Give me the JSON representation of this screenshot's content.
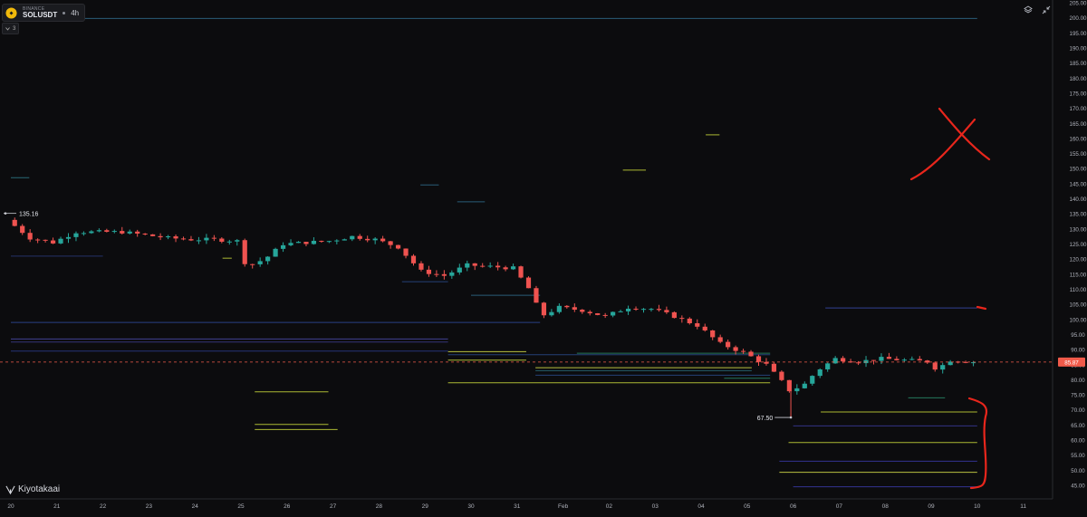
{
  "header": {
    "exchange": "BINANCE",
    "symbol": "SOLUSDT",
    "timeframe": "4h",
    "indicator_count": "3"
  },
  "watermark": "Kiyotakaai",
  "icons": [
    "layers-icon",
    "collapse-arrows-icon",
    "chevron-down-icon",
    "binance-logo-icon",
    "kiyotaka-logo-icon"
  ],
  "colors": {
    "up": "#26a69a",
    "down": "#ef5350",
    "price_line": "#f05a4a",
    "annotation": "#e8261c"
  },
  "chart_data": {
    "type": "candlestick",
    "x_ticks": [
      "20",
      "21",
      "22",
      "23",
      "24",
      "25",
      "26",
      "27",
      "28",
      "29",
      "30",
      "31",
      "Feb",
      "02",
      "03",
      "04",
      "05",
      "06",
      "07",
      "08",
      "09",
      "10",
      "11"
    ],
    "y_ticks": [
      "205.00",
      "200.00",
      "195.00",
      "190.00",
      "185.00",
      "180.00",
      "175.00",
      "170.00",
      "165.00",
      "160.00",
      "155.00",
      "150.00",
      "145.00",
      "140.00",
      "135.00",
      "130.00",
      "125.00",
      "120.00",
      "115.00",
      "110.00",
      "105.00",
      "100.00",
      "95.00",
      "90.00",
      "85.00",
      "80.00",
      "75.00",
      "70.00",
      "65.00",
      "60.00",
      "55.00",
      "50.00",
      "45.00"
    ],
    "ylim": [
      43.5,
      206
    ],
    "current_price": "85.87",
    "annotations": [
      "135.16",
      "67.50"
    ],
    "path": [
      [
        0,
        133
      ],
      [
        0.5,
        127
      ],
      [
        1,
        125.5
      ],
      [
        1.5,
        129
      ],
      [
        2,
        129
      ],
      [
        2.5,
        129
      ],
      [
        3,
        128
      ],
      [
        3.5,
        127
      ],
      [
        4,
        126.5
      ],
      [
        4.5,
        126.5
      ],
      [
        5,
        126
      ],
      [
        5.2,
        117.5
      ],
      [
        5.6,
        120
      ],
      [
        6,
        125
      ],
      [
        6.5,
        125.5
      ],
      [
        7,
        126
      ],
      [
        7.5,
        127.5
      ],
      [
        8,
        126.5
      ],
      [
        8.5,
        124
      ],
      [
        9,
        116
      ],
      [
        9.5,
        114.5
      ],
      [
        10,
        118
      ],
      [
        10.5,
        117.5
      ],
      [
        11,
        117
      ],
      [
        11.4,
        109
      ],
      [
        11.6,
        101
      ],
      [
        12,
        104
      ],
      [
        12.5,
        103
      ],
      [
        13,
        101
      ],
      [
        13.5,
        104
      ],
      [
        14,
        103.5
      ],
      [
        14.5,
        101
      ],
      [
        15,
        98
      ],
      [
        15.5,
        92
      ],
      [
        16,
        89
      ],
      [
        16.5,
        85
      ],
      [
        16.8,
        80
      ],
      [
        17,
        76.5
      ],
      [
        17.3,
        78
      ],
      [
        17.6,
        83
      ],
      [
        18,
        87
      ],
      [
        18.5,
        86
      ],
      [
        19,
        87
      ],
      [
        19.5,
        86.5
      ],
      [
        20,
        86
      ],
      [
        20.2,
        83.5
      ],
      [
        20.5,
        86.5
      ],
      [
        21,
        85.9
      ]
    ],
    "liquidity_levels": [
      {
        "x0": 0,
        "x1": 21,
        "price": 199.8,
        "color": "#2f6a8a"
      },
      {
        "x0": 0,
        "x1": 0.4,
        "price": 147,
        "color": "#2f7a8a"
      },
      {
        "x0": 8.9,
        "x1": 9.3,
        "price": 144.6,
        "color": "#2f6a8a"
      },
      {
        "x0": 9.7,
        "x1": 10.3,
        "price": 139,
        "color": "#2f6a8a"
      },
      {
        "x0": 15.1,
        "x1": 15.4,
        "price": 161.2,
        "color": "#c8d83a"
      },
      {
        "x0": 13.3,
        "x1": 13.8,
        "price": 149.5,
        "color": "#c8d83a"
      },
      {
        "x0": 0,
        "x1": 2,
        "price": 121,
        "color": "#2a3a7a"
      },
      {
        "x0": 4.6,
        "x1": 4.8,
        "price": 120.3,
        "color": "#c8d83a"
      },
      {
        "x0": 8.5,
        "x1": 9.5,
        "price": 112.5,
        "color": "#2a4a8a"
      },
      {
        "x0": 10,
        "x1": 11.5,
        "price": 108,
        "color": "#2f6a8a"
      },
      {
        "x0": 0,
        "x1": 11.5,
        "price": 99,
        "color": "#2f4a9a"
      },
      {
        "x0": 0,
        "x1": 9.5,
        "price": 93.5,
        "color": "#4a4aaa"
      },
      {
        "x0": 0,
        "x1": 9.5,
        "price": 92.5,
        "color": "#3a3a8a"
      },
      {
        "x0": 0,
        "x1": 9.5,
        "price": 89.5,
        "color": "#2a3a8a"
      },
      {
        "x0": 9.5,
        "x1": 11.2,
        "price": 89.3,
        "color": "#d6e04a"
      },
      {
        "x0": 12.3,
        "x1": 16.5,
        "price": 88.8,
        "color": "#2a8a6a"
      },
      {
        "x0": 9.5,
        "x1": 16.5,
        "price": 88.3,
        "color": "#2a4a8a"
      },
      {
        "x0": 9.5,
        "x1": 11.2,
        "price": 86.5,
        "color": "#c8d83a"
      },
      {
        "x0": 11.4,
        "x1": 16.1,
        "price": 84,
        "color": "#d6e04a"
      },
      {
        "x0": 11.4,
        "x1": 16.1,
        "price": 83,
        "color": "#2a6a7a"
      },
      {
        "x0": 11.4,
        "x1": 16.5,
        "price": 81.5,
        "color": "#2a4a8a"
      },
      {
        "x0": 15.5,
        "x1": 16.5,
        "price": 80.5,
        "color": "#2a8a6a"
      },
      {
        "x0": 9.5,
        "x1": 16.5,
        "price": 79,
        "color": "#c8d83a"
      },
      {
        "x0": 5.3,
        "x1": 6.9,
        "price": 76,
        "color": "#c8d83a"
      },
      {
        "x0": 5.3,
        "x1": 6.9,
        "price": 65.2,
        "color": "#c8d83a"
      },
      {
        "x0": 5.3,
        "x1": 7.1,
        "price": 63.5,
        "color": "#c8d83a"
      },
      {
        "x0": 17.7,
        "x1": 21,
        "price": 103.8,
        "color": "#3a4aaa"
      },
      {
        "x0": 19.5,
        "x1": 20.3,
        "price": 74,
        "color": "#2a8a6a"
      },
      {
        "x0": 17.6,
        "x1": 21,
        "price": 69.3,
        "color": "#c8d83a"
      },
      {
        "x0": 17,
        "x1": 21,
        "price": 64.7,
        "color": "#3a3a9a"
      },
      {
        "x0": 16.9,
        "x1": 21,
        "price": 59.2,
        "color": "#c8d83a"
      },
      {
        "x0": 16.7,
        "x1": 21,
        "price": 53,
        "color": "#3a3aaa"
      },
      {
        "x0": 16.7,
        "x1": 21,
        "price": 49.3,
        "color": "#d6e04a"
      },
      {
        "x0": 17,
        "x1": 21,
        "price": 44.5,
        "color": "#3a3aaa"
      }
    ]
  }
}
